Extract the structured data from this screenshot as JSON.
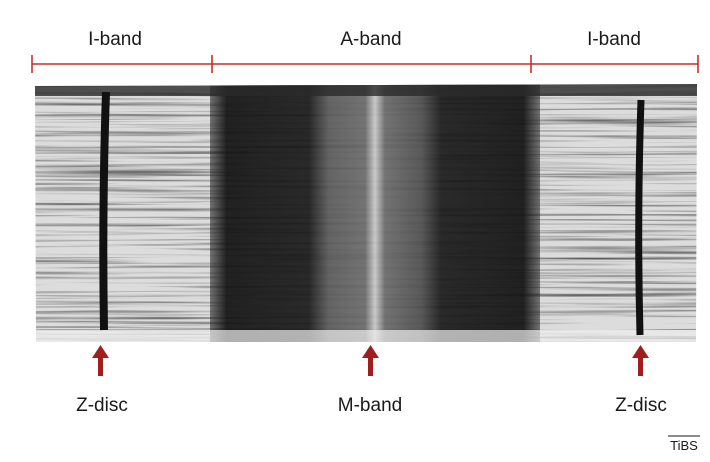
{
  "bands": [
    "I-band",
    "A-band",
    "I-band"
  ],
  "markers": [
    "Z-disc",
    "M-band",
    "Z-disc"
  ],
  "credit": "TiBS"
}
